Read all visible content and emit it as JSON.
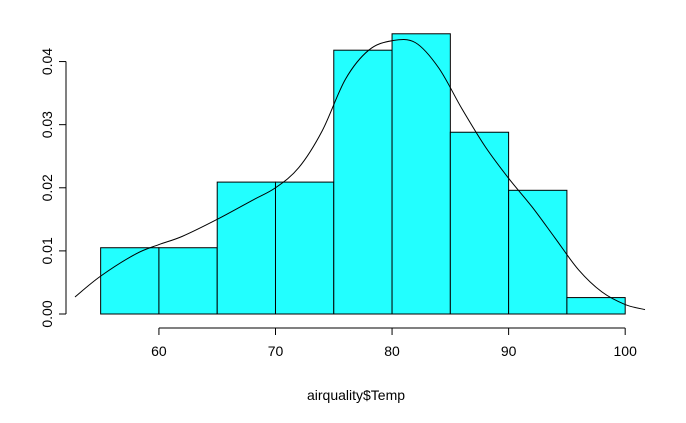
{
  "chart_data": {
    "type": "bar",
    "subtype": "histogram-with-density",
    "title": "",
    "xlabel": "airquality$Temp",
    "ylabel": "",
    "xlim": [
      52.8,
      101.7
    ],
    "ylim": [
      0,
      0.045
    ],
    "x_ticks": [
      60,
      70,
      80,
      90,
      100
    ],
    "y_ticks": [
      0,
      0.01,
      0.02,
      0.03,
      0.04
    ],
    "y_tick_labels": [
      "0.00",
      "0.01",
      "0.02",
      "0.03",
      "0.04"
    ],
    "bins": [
      {
        "from": 55,
        "to": 60,
        "density": 0.0105
      },
      {
        "from": 60,
        "to": 65,
        "density": 0.0105
      },
      {
        "from": 65,
        "to": 70,
        "density": 0.0209
      },
      {
        "from": 70,
        "to": 75,
        "density": 0.0209
      },
      {
        "from": 75,
        "to": 80,
        "density": 0.0418
      },
      {
        "from": 80,
        "to": 85,
        "density": 0.0444
      },
      {
        "from": 85,
        "to": 90,
        "density": 0.0288
      },
      {
        "from": 90,
        "to": 95,
        "density": 0.0196
      },
      {
        "from": 95,
        "to": 100,
        "density": 0.0026
      }
    ],
    "density_curve": {
      "x": [
        52.8,
        55,
        58,
        60,
        62,
        65,
        68,
        70,
        72,
        74,
        76,
        78,
        80,
        82,
        84,
        86,
        88,
        90,
        92,
        94,
        96,
        98,
        100,
        101.7
      ],
      "y": [
        0.0027,
        0.006,
        0.0095,
        0.011,
        0.0123,
        0.015,
        0.018,
        0.02,
        0.0232,
        0.029,
        0.0372,
        0.0418,
        0.0433,
        0.043,
        0.039,
        0.0325,
        0.0265,
        0.0215,
        0.017,
        0.012,
        0.007,
        0.0035,
        0.0015,
        0.0007
      ]
    },
    "bar_color": "#22FFFF",
    "bar_border_color": "#000000",
    "line_color": "#000000",
    "grid": false,
    "legend": "none"
  }
}
